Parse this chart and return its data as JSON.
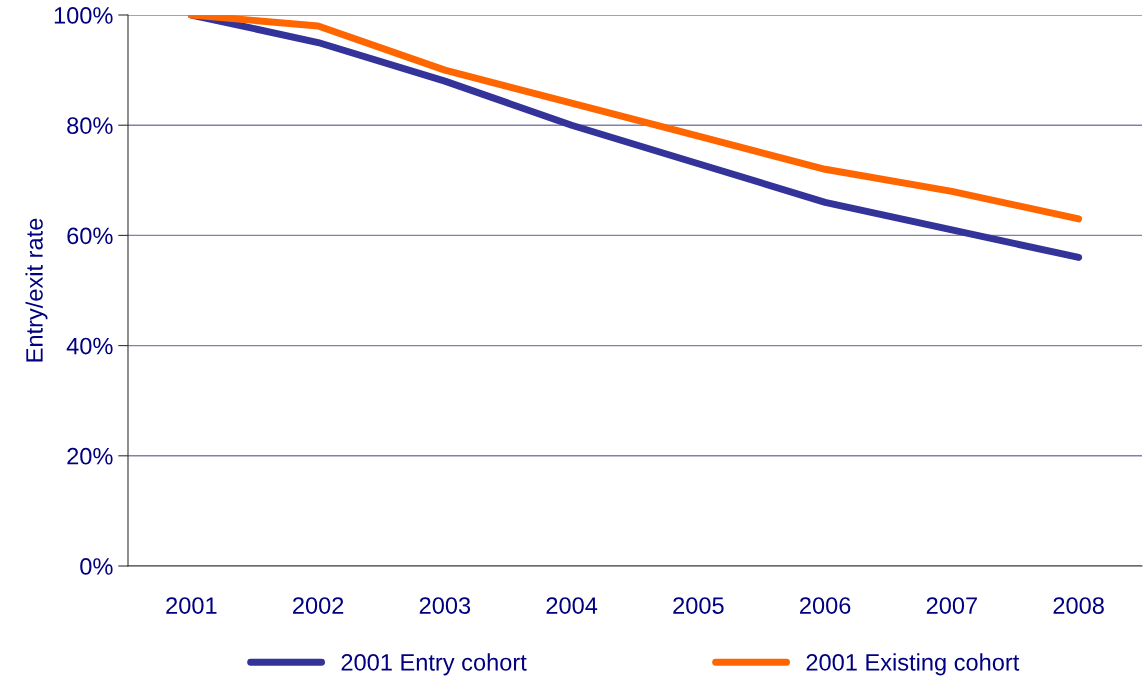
{
  "chart_data": {
    "type": "line",
    "ylabel": "Entry/exit rate",
    "categories": [
      "2001",
      "2002",
      "2003",
      "2004",
      "2005",
      "2006",
      "2007",
      "2008"
    ],
    "series": [
      {
        "name": "2001 Entry cohort",
        "color": "#333399",
        "values": [
          100,
          95,
          88,
          80,
          73,
          66,
          61,
          56
        ]
      },
      {
        "name": "2001 Existing cohort",
        "color": "#ff6600",
        "values": [
          100,
          98,
          90,
          84,
          78,
          72,
          68,
          63
        ]
      }
    ],
    "ylim": [
      0,
      100
    ],
    "yticks": [
      {
        "value": 0,
        "label": "0%"
      },
      {
        "value": 20,
        "label": "20%"
      },
      {
        "value": 40,
        "label": "40%"
      },
      {
        "value": 60,
        "label": "60%"
      },
      {
        "value": 80,
        "label": "80%"
      },
      {
        "value": 100,
        "label": "100%"
      }
    ],
    "grid": "y",
    "legend": "bottom",
    "marker": "none",
    "line_style": "solid"
  }
}
